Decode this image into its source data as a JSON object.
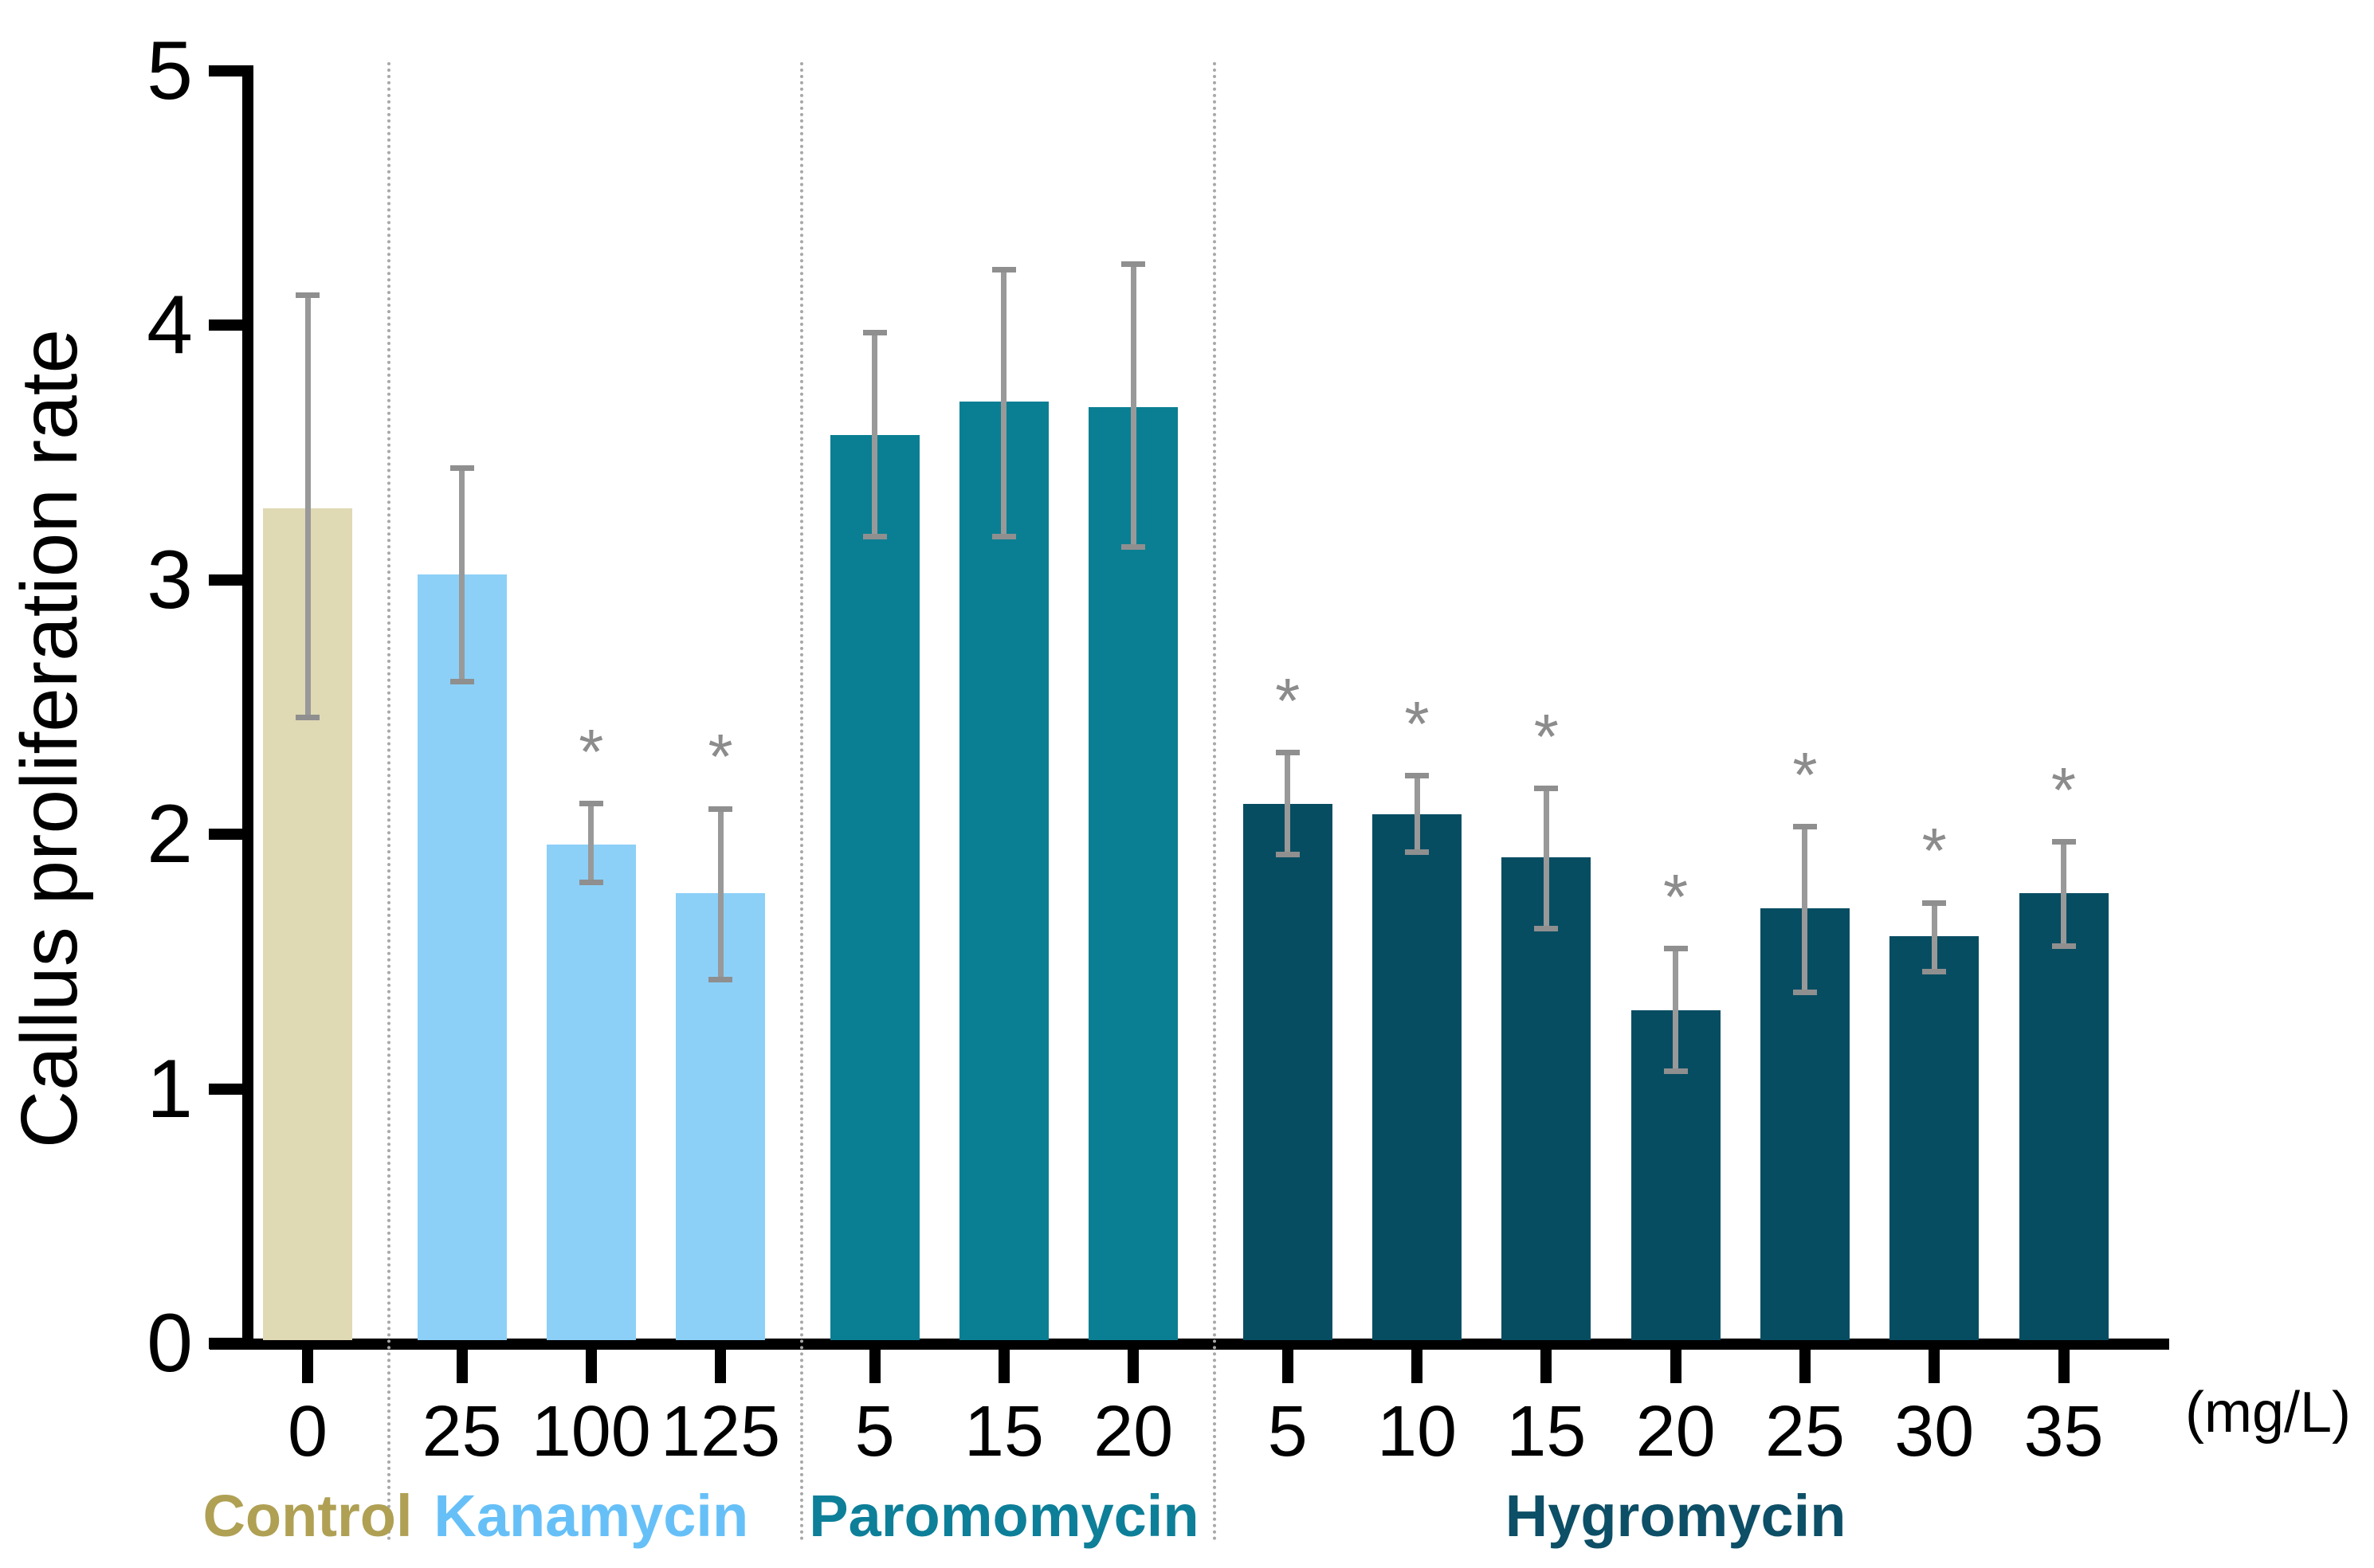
{
  "chart_data": {
    "type": "bar",
    "title": "",
    "ylabel": "Callus proliferation rate",
    "xlabel": "",
    "x_unit": "(mg/L)",
    "ylim": [
      0,
      5
    ],
    "y_ticks": [
      "0",
      "1",
      "2",
      "3",
      "4",
      "5"
    ],
    "grid": "off",
    "legend": "none",
    "error_bar_color": "#999999",
    "significance_marker": "*",
    "significance_marker_color": "#8c8c8c",
    "separator_color": "#a8a8a8",
    "axis_color": "#000000",
    "groups": [
      {
        "name": "Control",
        "bar_color": "#dfd9b4",
        "label_color": "#afa054",
        "bars": [
          {
            "label": "0",
            "value": 3.28,
            "err_low": 0.82,
            "err_high": 0.84,
            "significant": false
          }
        ]
      },
      {
        "name": "Kanamycin",
        "bar_color": "#8cd0f8",
        "label_color": "#66c0f7",
        "bars": [
          {
            "label": "25",
            "value": 3.02,
            "err_low": 0.42,
            "err_high": 0.42,
            "significant": false
          },
          {
            "label": "100",
            "value": 1.96,
            "err_low": 0.15,
            "err_high": 0.16,
            "significant": true
          },
          {
            "label": "125",
            "value": 1.77,
            "err_low": 0.34,
            "err_high": 0.33,
            "significant": true
          }
        ]
      },
      {
        "name": "Paromomycin",
        "bar_color": "#0a7f93",
        "label_color": "#0d7f99",
        "bars": [
          {
            "label": "5",
            "value": 3.57,
            "err_low": 0.4,
            "err_high": 0.4,
            "significant": false
          },
          {
            "label": "15",
            "value": 3.7,
            "err_low": 0.53,
            "err_high": 0.52,
            "significant": false
          },
          {
            "label": "20",
            "value": 3.68,
            "err_low": 0.55,
            "err_high": 0.56,
            "significant": false
          }
        ]
      },
      {
        "name": "Hygromycin",
        "bar_color": "#074d62",
        "label_color": "#0d4f66",
        "bars": [
          {
            "label": "5",
            "value": 2.12,
            "err_low": 0.2,
            "err_high": 0.2,
            "significant": true
          },
          {
            "label": "10",
            "value": 2.08,
            "err_low": 0.15,
            "err_high": 0.15,
            "significant": true
          },
          {
            "label": "15",
            "value": 1.91,
            "err_low": 0.28,
            "err_high": 0.27,
            "significant": true
          },
          {
            "label": "20",
            "value": 1.31,
            "err_low": 0.24,
            "err_high": 0.24,
            "significant": true
          },
          {
            "label": "25",
            "value": 1.71,
            "err_low": 0.33,
            "err_high": 0.32,
            "significant": true
          },
          {
            "label": "30",
            "value": 1.6,
            "err_low": 0.14,
            "err_high": 0.13,
            "significant": true
          },
          {
            "label": "35",
            "value": 1.77,
            "err_low": 0.21,
            "err_high": 0.2,
            "significant": true
          }
        ]
      }
    ]
  }
}
